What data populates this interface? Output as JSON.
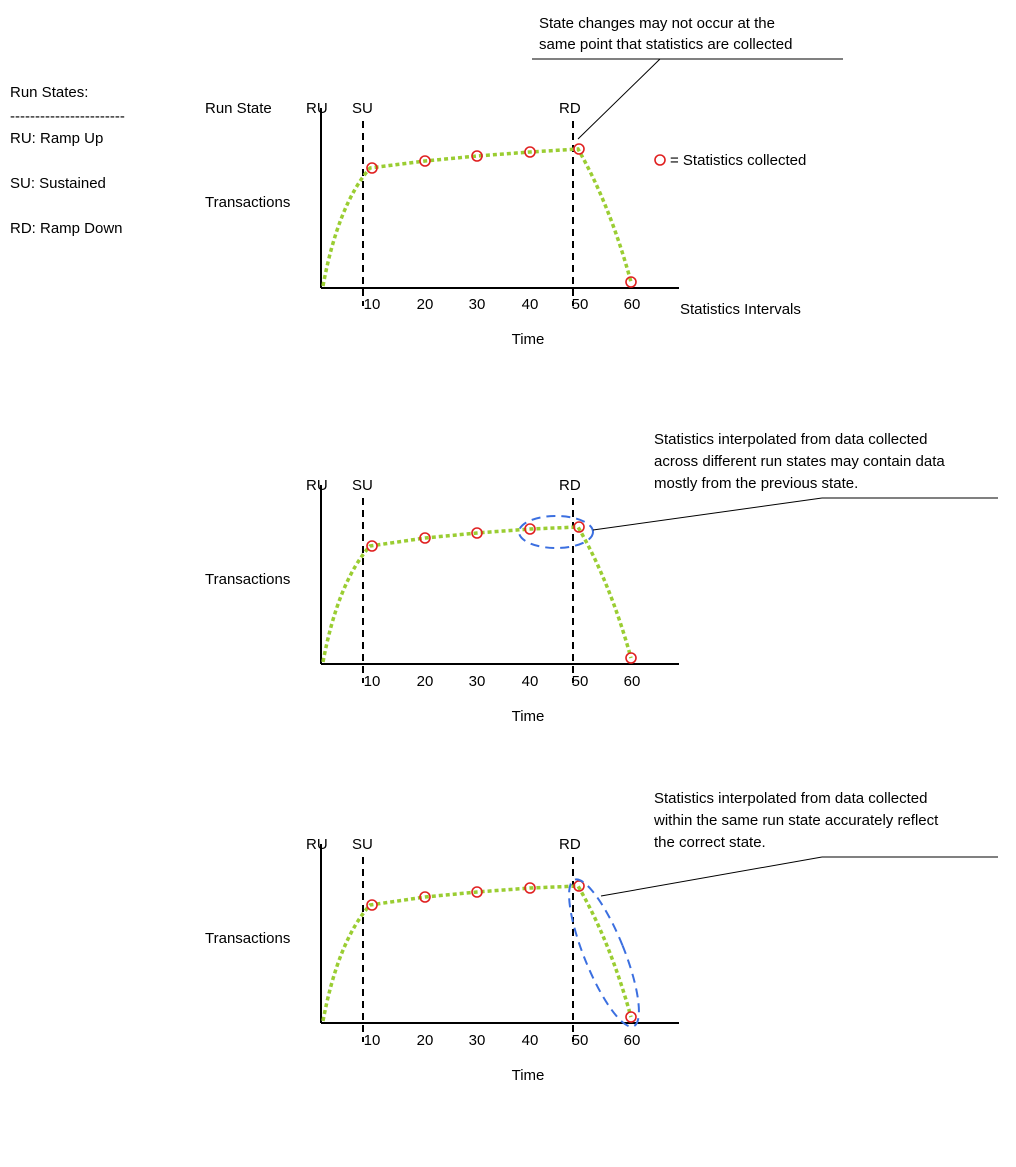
{
  "legend": {
    "title": "Run States:",
    "divider": "-----------------------",
    "items": [
      "RU: Ramp Up",
      "SU: Sustained",
      "RD: Ramp Down"
    ]
  },
  "labels": {
    "run_state": "Run State",
    "y_axis": "Transactions",
    "x_axis": "Time",
    "intervals": "Statistics Intervals",
    "stats_marker": "= Statistics collected"
  },
  "states": [
    "RU",
    "SU",
    "RD"
  ],
  "ticks": [
    "10",
    "20",
    "30",
    "40",
    "50",
    "60"
  ],
  "panels": [
    {
      "id": "panel-1",
      "note_lines": [
        "State changes  may not occur at the",
        "same point that statistics are collected"
      ],
      "highlight": "none"
    },
    {
      "id": "panel-2",
      "note_lines": [
        "Statistics interpolated from data collected",
        "across different run states may contain data",
        "mostly from the previous state."
      ],
      "highlight": "across-states"
    },
    {
      "id": "panel-3",
      "note_lines": [
        "Statistics interpolated from data collected",
        "within the same run state accurately reflect",
        "the correct state."
      ],
      "highlight": "within-state"
    }
  ],
  "colors": {
    "curve": "#9acd32",
    "marker": "#e02020",
    "highlight": "#3b6fe0",
    "axis": "#000000"
  }
}
